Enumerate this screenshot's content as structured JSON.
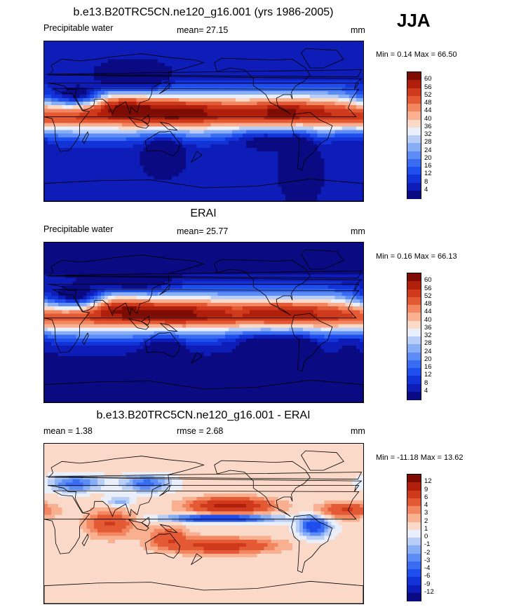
{
  "season": "JJA",
  "panels": [
    {
      "title": "b.e13.B20TRC5CN.ne120_g16.001 (yrs 1986-2005)",
      "left_label": "Precipitable water",
      "mean_text": "mean=  27.15",
      "units": "mm",
      "minmax": "Min =   0.14 Max =  66.50",
      "colorbar_ticks": [
        "60",
        "56",
        "52",
        "48",
        "44",
        "40",
        "36",
        "32",
        "28",
        "24",
        "20",
        "16",
        "12",
        "8",
        "4"
      ]
    },
    {
      "title": "ERAI",
      "left_label": "Precipitable water",
      "mean_text": "mean=  25.77",
      "units": "mm",
      "minmax": "Min =   0.16 Max =  66.13",
      "colorbar_ticks": [
        "60",
        "56",
        "52",
        "48",
        "44",
        "40",
        "36",
        "32",
        "28",
        "24",
        "20",
        "16",
        "12",
        "8",
        "4"
      ]
    },
    {
      "title": "b.e13.B20TRC5CN.ne120_g16.001 - ERAI",
      "left_label": "mean =   1.38",
      "mean_text": "rmse =   2.68",
      "units": "mm",
      "minmax": "Min = -11.18 Max =  13.62",
      "colorbar_ticks": [
        "12",
        "9",
        "6",
        "4",
        "3",
        "2",
        "1",
        "0",
        "-1",
        "-2",
        "-3",
        "-4",
        "-6",
        "-9",
        "-12"
      ]
    }
  ],
  "chart_data": [
    {
      "type": "heatmap",
      "title": "b.e13.B20TRC5CN.ne120_g16.001 (yrs 1986-2005)",
      "variable": "Precipitable water",
      "units": "mm",
      "mean": 27.15,
      "min": 0.14,
      "max": 66.5,
      "levels": [
        4,
        8,
        12,
        16,
        20,
        24,
        28,
        32,
        36,
        40,
        44,
        48,
        52,
        56,
        60
      ],
      "colors": [
        "#0a0a82",
        "#0e1cb8",
        "#1233d8",
        "#1e4fec",
        "#3a6cf2",
        "#5d8cf5",
        "#88aef6",
        "#b8cef7",
        "#e8eefa",
        "#fbd9c8",
        "#f8b090",
        "#f18660",
        "#e45a35",
        "#d03a1c",
        "#b01e0c",
        "#7d0c05"
      ],
      "colorscale_range": [
        4,
        60
      ]
    },
    {
      "type": "heatmap",
      "title": "ERAI",
      "variable": "Precipitable water",
      "units": "mm",
      "mean": 25.77,
      "min": 0.16,
      "max": 66.13,
      "levels": [
        4,
        8,
        12,
        16,
        20,
        24,
        28,
        32,
        36,
        40,
        44,
        48,
        52,
        56,
        60
      ],
      "colors": [
        "#0a0a82",
        "#0e1cb8",
        "#1233d8",
        "#1e4fec",
        "#3a6cf2",
        "#5d8cf5",
        "#88aef6",
        "#b8cef7",
        "#e8eefa",
        "#fbd9c8",
        "#f8b090",
        "#f18660",
        "#e45a35",
        "#d03a1c",
        "#b01e0c",
        "#7d0c05"
      ],
      "colorscale_range": [
        4,
        60
      ]
    },
    {
      "type": "heatmap",
      "title": "b.e13.B20TRC5CN.ne120_g16.001 - ERAI",
      "units": "mm",
      "mean": 1.38,
      "rmse": 2.68,
      "min": -11.18,
      "max": 13.62,
      "levels": [
        -12,
        -9,
        -6,
        -4,
        -3,
        -2,
        -1,
        0,
        1,
        2,
        3,
        4,
        6,
        9,
        12
      ],
      "colors": [
        "#0a0a82",
        "#0e1cb8",
        "#1233d8",
        "#1e4fec",
        "#3a6cf2",
        "#5d8cf5",
        "#88aef6",
        "#b8cef7",
        "#e8eefa",
        "#fbd9c8",
        "#f8b090",
        "#f18660",
        "#e45a35",
        "#d03a1c",
        "#b01e0c",
        "#7d0c05"
      ],
      "colorscale_range": [
        -12,
        12
      ]
    }
  ]
}
